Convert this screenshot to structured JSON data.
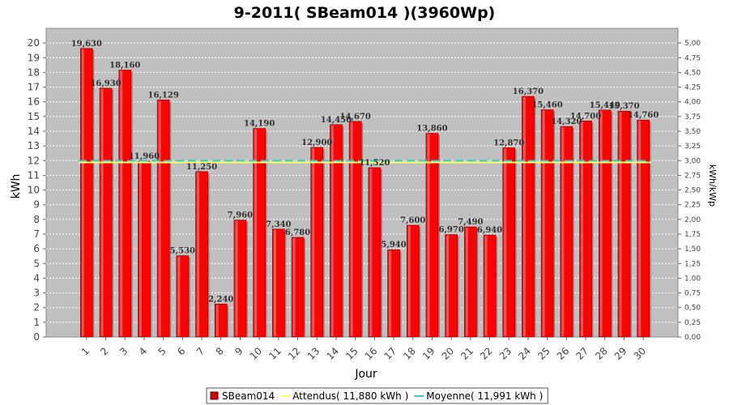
{
  "chart_data": {
    "type": "bar",
    "title": "9-2011( SBeam014 )(3960Wp)",
    "xlabel": "Jour",
    "ylabel": "kWh",
    "ylabel_right": "kWh/kWp",
    "ylim": [
      0,
      21
    ],
    "ylim_right": [
      0,
      5.25
    ],
    "yticks": [
      "0",
      "1",
      "2",
      "3",
      "4",
      "5",
      "6",
      "7",
      "8",
      "9",
      "10",
      "11",
      "12",
      "13",
      "14",
      "15",
      "16",
      "17",
      "18",
      "19",
      "20"
    ],
    "yticks_right": [
      "0,00",
      "0,25",
      "0,50",
      "0,75",
      "1,00",
      "1,25",
      "1,50",
      "1,75",
      "2,00",
      "2,25",
      "2,50",
      "2,75",
      "3,00",
      "3,25",
      "3,50",
      "3,75",
      "4,00",
      "4,25",
      "4,50",
      "4,75",
      "5,00"
    ],
    "categories": [
      "1",
      "2",
      "3",
      "4",
      "5",
      "6",
      "7",
      "8",
      "9",
      "10",
      "11",
      "12",
      "13",
      "14",
      "15",
      "16",
      "17",
      "18",
      "19",
      "20",
      "21",
      "22",
      "23",
      "24",
      "25",
      "26",
      "27",
      "28",
      "29",
      "30"
    ],
    "series": [
      {
        "name": "SBeam014",
        "values": [
          19.63,
          16.93,
          18.16,
          11.96,
          16.129,
          5.53,
          11.25,
          2.24,
          7.96,
          14.19,
          7.34,
          6.78,
          12.9,
          14.45,
          14.67,
          11.52,
          5.94,
          7.6,
          13.86,
          6.97,
          7.49,
          6.94,
          12.87,
          16.37,
          15.46,
          14.32,
          14.7,
          15.44,
          15.37,
          14.76
        ],
        "labels": [
          "19,630",
          "16,930",
          "18,160",
          "11,960",
          "16,129",
          "5,530",
          "11,250",
          "2,240",
          "7,960",
          "14,190",
          "7,340",
          "6,780",
          "12,900",
          "14,450",
          "14,670",
          "11,520",
          "5,940",
          "7,600",
          "13,860",
          "6,970",
          "7,490",
          "6,940",
          "12,870",
          "16,370",
          "15,460",
          "14,320",
          "14,700",
          "15,440",
          "15,370",
          "14,760"
        ],
        "color": "#ff0000"
      }
    ],
    "reference_lines": [
      {
        "name": "Attendus",
        "value": 11.88,
        "color": "#ffff66"
      },
      {
        "name": "Moyenne",
        "value": 11.991,
        "color": "#33cccc"
      }
    ],
    "legend": [
      {
        "label": "SBeam014",
        "color": "#cc0000"
      },
      {
        "label": "Attendus( 11,880 kWh )",
        "color": "#ffff66"
      },
      {
        "label": "Moyenne( 11,991 kWh )",
        "color": "#33cccc"
      }
    ],
    "legend_position": "bottom",
    "grid": true,
    "plot_background": "#c0c0c0"
  }
}
